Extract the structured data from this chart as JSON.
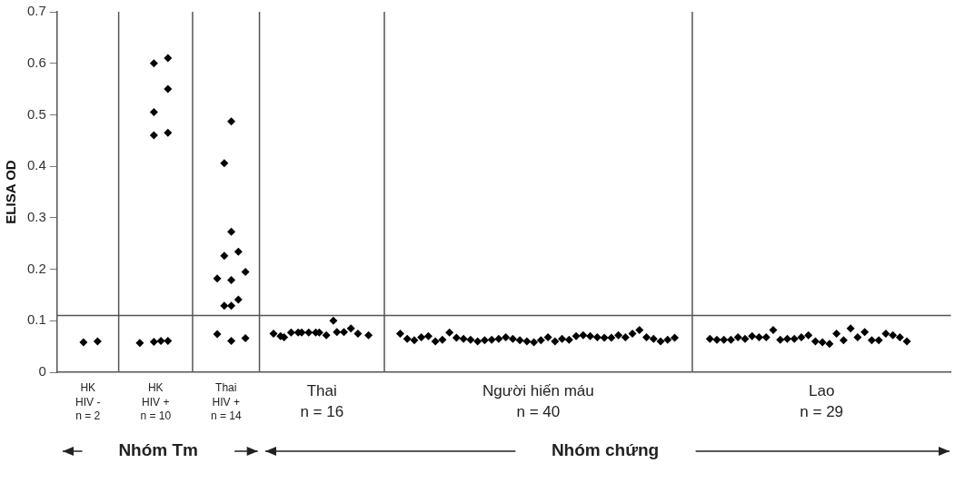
{
  "chart_data": {
    "type": "scatter",
    "ylabel": "ELISA OD",
    "ylim": [
      0,
      0.7
    ],
    "yticks": [
      0,
      0.1,
      0.2,
      0.3,
      0.4,
      0.5,
      0.6,
      0.7
    ],
    "tick_labels": "y",
    "grid": false,
    "legend": false,
    "marker": "diamond",
    "categories": [
      null,
      null,
      null,
      null,
      null,
      null,
      null,
      null,
      null,
      null,
      null,
      null,
      null,
      null,
      null,
      null,
      null,
      null,
      null,
      null,
      null,
      null,
      null,
      null,
      null,
      null,
      null,
      null,
      null,
      null,
      null,
      null,
      null,
      null,
      null,
      null,
      null,
      null,
      null,
      null,
      null,
      null,
      null,
      null,
      null,
      null,
      null,
      null,
      null,
      null,
      null,
      null,
      null,
      null,
      null,
      null,
      null,
      null,
      null,
      null,
      null,
      null,
      null,
      null,
      null,
      null,
      null,
      null,
      null,
      null,
      null,
      null,
      null,
      null,
      null,
      null,
      null,
      null,
      null,
      null,
      null,
      null,
      null,
      null,
      null,
      null,
      null,
      null,
      null,
      null,
      null,
      null,
      null,
      null,
      null,
      null,
      null,
      null,
      null,
      null,
      null,
      null,
      null,
      null,
      null,
      null,
      null,
      null,
      null,
      null,
      null,
      null,
      null,
      null,
      null,
      null,
      null,
      null,
      null,
      null,
      null,
      null,
      null,
      null,
      null,
      null,
      null,
      null,
      null,
      null,
      null,
      null,
      null,
      null,
      null,
      null,
      null,
      null,
      null,
      null,
      null,
      null,
      null,
      null,
      null,
      null,
      null,
      null,
      null,
      null,
      null,
      null,
      null,
      null,
      null,
      null,
      null,
      null,
      null,
      null,
      null,
      null,
      null,
      null,
      null,
      null,
      null,
      null,
      null,
      null,
      null,
      null,
      null,
      null,
      null,
      null,
      null,
      null,
      null,
      null,
      null,
      null,
      null,
      null,
      null,
      null,
      null,
      null,
      null,
      null,
      null,
      null,
      null,
      null,
      null,
      null,
      null,
      null,
      null,
      null,
      null,
      null,
      null,
      null,
      null,
      null,
      null,
      null,
      null,
      null,
      null,
      null,
      null,
      null,
      null,
      null,
      null,
      null,
      null,
      null,
      null,
      null,
      null,
      null,
      null,
      null,
      null,
      null,
      null,
      null,
      null,
      null,
      null,
      null,
      null,
      null,
      null,
      null,
      null,
      null,
      null,
      null,
      null,
      null,
      null,
      null,
      null,
      null,
      null,
      null,
      null,
      null,
      null,
      null
    ],
    "series": [
      {
        "color": "#000000",
        "values": [
          null,
          null,
          null,
          null,
          null,
          null,
          null,
          0.058,
          null,
          null,
          null,
          0.06,
          null,
          null,
          null,
          null,
          null,
          null,
          null,
          null,
          null,
          null,
          null,
          0.057,
          null,
          null,
          null,
          0.6,
          null,
          0.061,
          null,
          0.61,
          null,
          null,
          null,
          null,
          null,
          null,
          null,
          null,
          null,
          null,
          null,
          null,
          null,
          0.182,
          null,
          0.406,
          null,
          0.487,
          null,
          0.234,
          null,
          0.195,
          null,
          null,
          null,
          null,
          null,
          null,
          null,
          0.075,
          null,
          0.07,
          0.068,
          null,
          0.077,
          null,
          0.077,
          0.077,
          null,
          0.077,
          null,
          0.077,
          0.077,
          null,
          0.072,
          null,
          0.1,
          0.078,
          null,
          0.078,
          null,
          0.085,
          null,
          0.075,
          null,
          null,
          0.072,
          null,
          null,
          null,
          null,
          null,
          null,
          null,
          null,
          0.075,
          null,
          0.065,
          null,
          0.062,
          null,
          0.068,
          null,
          0.07,
          null,
          0.06,
          null,
          0.063,
          null,
          0.077,
          null,
          0.067,
          null,
          0.065,
          null,
          0.063,
          null,
          0.06,
          null,
          0.062,
          null,
          0.063,
          null,
          0.065,
          null,
          0.068,
          null,
          0.065,
          null,
          0.062,
          null,
          0.06,
          null,
          0.058,
          null,
          0.062,
          null,
          0.068,
          null,
          0.06,
          null,
          0.065,
          null,
          0.063,
          null,
          0.07,
          null,
          0.072,
          null,
          0.07,
          null,
          0.068,
          null,
          0.067,
          null,
          0.067,
          null,
          0.072,
          null,
          0.068,
          null,
          0.075,
          null,
          0.082,
          null,
          0.068,
          null,
          0.065,
          null,
          0.06,
          null,
          0.063,
          null,
          0.067,
          null,
          null,
          null,
          null,
          null,
          null,
          null,
          null,
          null,
          0.065,
          null,
          0.063,
          null,
          0.063,
          null,
          0.063,
          null,
          0.068,
          null,
          0.065,
          null,
          0.07,
          null,
          0.068,
          null,
          0.068,
          null,
          0.082,
          null,
          0.063,
          null,
          0.065,
          null,
          0.065,
          null,
          0.068,
          null,
          0.072,
          null,
          0.06,
          null,
          0.058,
          null,
          0.055,
          null,
          0.075,
          null,
          0.062,
          null,
          0.085,
          null,
          0.068,
          null,
          0.078,
          null,
          0.062,
          null,
          0.062,
          null,
          0.075,
          null,
          0.072,
          null,
          0.068,
          null,
          0.06,
          null,
          null,
          null,
          null,
          null,
          null,
          null,
          null,
          null,
          null,
          null,
          null
        ]
      },
      {
        "color": "#000000",
        "values": [
          null,
          null,
          null,
          null,
          null,
          null,
          null,
          null,
          null,
          null,
          null,
          null,
          null,
          null,
          null,
          null,
          null,
          null,
          null,
          null,
          null,
          null,
          null,
          null,
          null,
          null,
          null,
          0.505,
          null,
          null,
          null,
          0.55,
          null,
          null,
          null,
          null,
          null,
          null,
          null,
          null,
          null,
          null,
          null,
          null,
          null,
          0.074,
          null,
          0.226,
          null,
          0.273,
          null,
          0.141,
          null,
          0.066,
          null,
          null,
          null,
          null,
          null,
          null,
          null,
          null,
          null,
          null,
          null,
          null,
          null,
          null,
          null,
          null,
          null,
          null,
          null,
          null,
          null,
          null,
          null,
          null,
          null,
          null,
          null,
          null,
          null,
          null,
          null,
          null,
          null,
          null,
          null,
          null,
          null,
          null,
          null,
          null,
          null,
          null,
          null,
          null,
          null,
          null,
          null,
          null,
          null,
          null,
          null,
          null,
          null,
          null,
          null,
          null,
          null,
          null,
          null,
          null,
          null,
          null,
          null,
          null,
          null,
          null,
          null,
          null,
          null,
          null,
          null,
          null,
          null,
          null,
          null,
          null,
          null,
          null,
          null,
          null,
          null,
          null,
          null,
          null,
          null,
          null,
          null,
          null,
          null,
          null,
          null,
          null,
          null,
          null,
          null,
          null,
          null,
          null,
          null,
          null,
          null,
          null,
          null,
          null,
          null,
          null,
          null,
          null,
          null,
          null,
          null,
          null,
          null,
          null,
          null,
          null,
          null,
          null,
          null,
          null,
          null,
          null,
          null,
          null,
          null,
          null,
          null,
          null,
          null,
          null,
          null,
          null,
          null,
          null,
          null,
          null,
          null,
          null,
          null,
          null,
          null,
          null,
          null,
          null,
          null,
          null,
          null,
          null,
          null,
          null,
          null,
          null,
          null,
          null,
          null,
          null,
          null,
          null,
          null,
          null,
          null,
          null,
          null,
          null,
          null,
          null,
          null,
          null,
          null,
          null,
          null,
          null,
          null,
          null,
          null,
          null,
          null,
          null,
          null,
          null,
          null,
          null,
          null,
          null,
          null,
          null,
          null,
          null,
          null,
          null,
          null,
          null,
          null,
          null,
          null,
          null,
          null,
          null,
          null,
          null
        ]
      },
      {
        "color": "#000000",
        "values": [
          null,
          null,
          null,
          null,
          null,
          null,
          null,
          null,
          null,
          null,
          null,
          null,
          null,
          null,
          null,
          null,
          null,
          null,
          null,
          null,
          null,
          null,
          null,
          null,
          null,
          null,
          null,
          0.46,
          null,
          null,
          null,
          0.465,
          null,
          null,
          null,
          null,
          null,
          null,
          null,
          null,
          null,
          null,
          null,
          null,
          null,
          null,
          null,
          0.129,
          null,
          0.179,
          null,
          null,
          null,
          null,
          null,
          null,
          null,
          null,
          null,
          null,
          null,
          null,
          null,
          null,
          null,
          null,
          null,
          null,
          null,
          null,
          null,
          null,
          null,
          null,
          null,
          null,
          null,
          null,
          null,
          null,
          null,
          null,
          null,
          null,
          null,
          null,
          null,
          null,
          null,
          null,
          null,
          null,
          null,
          null,
          null,
          null,
          null,
          null,
          null,
          null,
          null,
          null,
          null,
          null,
          null,
          null,
          null,
          null,
          null,
          null,
          null,
          null,
          null,
          null,
          null,
          null,
          null,
          null,
          null,
          null,
          null,
          null,
          null,
          null,
          null,
          null,
          null,
          null,
          null,
          null,
          null,
          null,
          null,
          null,
          null,
          null,
          null,
          null,
          null,
          null,
          null,
          null,
          null,
          null,
          null,
          null,
          null,
          null,
          null,
          null,
          null,
          null,
          null,
          null,
          null,
          null,
          null,
          null,
          null,
          null,
          null,
          null,
          null,
          null,
          null,
          null,
          null,
          null,
          null,
          null,
          null,
          null,
          null,
          null,
          null,
          null,
          null,
          null,
          null,
          null,
          null,
          null,
          null,
          null,
          null,
          null,
          null,
          null,
          null,
          null,
          null,
          null,
          null,
          null,
          null,
          null,
          null,
          null,
          null,
          null,
          null,
          null,
          null,
          null,
          null,
          null,
          null,
          null,
          null,
          null,
          null,
          null,
          null,
          null,
          null,
          null,
          null,
          null,
          null,
          null,
          null,
          null,
          null,
          null,
          null,
          null,
          null,
          null,
          null,
          null,
          null,
          null,
          null,
          null,
          null,
          null,
          null,
          null,
          null,
          null,
          null,
          null,
          null,
          null,
          null,
          null,
          null,
          null,
          null,
          null,
          null,
          null,
          null,
          null
        ]
      },
      {
        "color": "#000000",
        "values": [
          null,
          null,
          null,
          null,
          null,
          null,
          null,
          null,
          null,
          null,
          null,
          null,
          null,
          null,
          null,
          null,
          null,
          null,
          null,
          null,
          null,
          null,
          null,
          null,
          null,
          null,
          null,
          0.059,
          null,
          null,
          null,
          0.061,
          null,
          null,
          null,
          null,
          null,
          null,
          null,
          null,
          null,
          null,
          null,
          null,
          null,
          null,
          null,
          null,
          null,
          0.129,
          null,
          null,
          null,
          null,
          null,
          null,
          null,
          null,
          null,
          null,
          null,
          null,
          null,
          null,
          null,
          null,
          null,
          null,
          null,
          null,
          null,
          null,
          null,
          null,
          null,
          null,
          null,
          null,
          null,
          null,
          null,
          null,
          null,
          null,
          null,
          null,
          null,
          null,
          null,
          null,
          null,
          null,
          null,
          null,
          null,
          null,
          null,
          null,
          null,
          null,
          null,
          null,
          null,
          null,
          null,
          null,
          null,
          null,
          null,
          null,
          null,
          null,
          null,
          null,
          null,
          null,
          null,
          null,
          null,
          null,
          null,
          null,
          null,
          null,
          null,
          null,
          null,
          null,
          null,
          null,
          null,
          null,
          null,
          null,
          null,
          null,
          null,
          null,
          null,
          null,
          null,
          null,
          null,
          null,
          null,
          null,
          null,
          null,
          null,
          null,
          null,
          null,
          null,
          null,
          null,
          null,
          null,
          null,
          null,
          null,
          null,
          null,
          null,
          null,
          null,
          null,
          null,
          null,
          null,
          null,
          null,
          null,
          null,
          null,
          null,
          null,
          null,
          null,
          null,
          null,
          null,
          null,
          null,
          null,
          null,
          null,
          null,
          null,
          null,
          null,
          null,
          null,
          null,
          null,
          null,
          null,
          null,
          null,
          null,
          null,
          null,
          null,
          null,
          null,
          null,
          null,
          null,
          null,
          null,
          null,
          null,
          null,
          null,
          null,
          null,
          null,
          null,
          null,
          null,
          null,
          null,
          null,
          null,
          null,
          null,
          null,
          null,
          null,
          null,
          null,
          null,
          null,
          null,
          null,
          null,
          null,
          null,
          null,
          null,
          null,
          null,
          null,
          null,
          null,
          null,
          null,
          null,
          null,
          null,
          null,
          null,
          null,
          null,
          null
        ]
      },
      {
        "color": "#000000",
        "values": [
          null,
          null,
          null,
          null,
          null,
          null,
          null,
          null,
          null,
          null,
          null,
          null,
          null,
          null,
          null,
          null,
          null,
          null,
          null,
          null,
          null,
          null,
          null,
          null,
          null,
          null,
          null,
          null,
          null,
          null,
          null,
          null,
          null,
          null,
          null,
          null,
          null,
          null,
          null,
          null,
          null,
          null,
          null,
          null,
          null,
          null,
          null,
          null,
          null,
          0.061,
          null,
          null,
          null,
          null,
          null,
          null,
          null,
          null,
          null,
          null,
          null,
          null,
          null,
          null,
          null,
          null,
          null,
          null,
          null,
          null,
          null,
          null,
          null,
          null,
          null,
          null,
          null,
          null,
          null,
          null,
          null,
          null,
          null,
          null,
          null,
          null,
          null,
          null,
          null,
          null,
          null,
          null,
          null,
          null,
          null,
          null,
          null,
          null,
          null,
          null,
          null,
          null,
          null,
          null,
          null,
          null,
          null,
          null,
          null,
          null,
          null,
          null,
          null,
          null,
          null,
          null,
          null,
          null,
          null,
          null,
          null,
          null,
          null,
          null,
          null,
          null,
          null,
          null,
          null,
          null,
          null,
          null,
          null,
          null,
          null,
          null,
          null,
          null,
          null,
          null,
          null,
          null,
          null,
          null,
          null,
          null,
          null,
          null,
          null,
          null,
          null,
          null,
          null,
          null,
          null,
          null,
          null,
          null,
          null,
          null,
          null,
          null,
          null,
          null,
          null,
          null,
          null,
          null,
          null,
          null,
          null,
          null,
          null,
          null,
          null,
          null,
          null,
          null,
          null,
          null,
          null,
          null,
          null,
          null,
          null,
          null,
          null,
          null,
          null,
          null,
          null,
          null,
          null,
          null,
          null,
          null,
          null,
          null,
          null,
          null,
          null,
          null,
          null,
          null,
          null,
          null,
          null,
          null,
          null,
          null,
          null,
          null,
          null,
          null,
          null,
          null,
          null,
          null,
          null,
          null,
          null,
          null,
          null,
          null,
          null,
          null,
          null,
          null,
          null,
          null,
          null,
          null,
          null,
          null,
          null,
          null,
          null,
          null,
          null,
          null,
          null,
          null,
          null,
          null,
          null,
          null,
          null,
          null,
          null,
          null,
          null,
          null,
          null,
          null
        ]
      }
    ],
    "ref_lines": [
      {
        "axis": "y",
        "value": 0.11
      }
    ],
    "annotations": [
      "HK\nHIV -\nn = 2",
      "HK\nHIV +\nn = 10",
      "Thai\nHIV +\nn = 14",
      "Thai\nn = 16",
      "Người hiến máu\nn = 40",
      "Lao\nn = 29",
      "Nhóm Tm",
      "Nhóm chứng"
    ]
  }
}
